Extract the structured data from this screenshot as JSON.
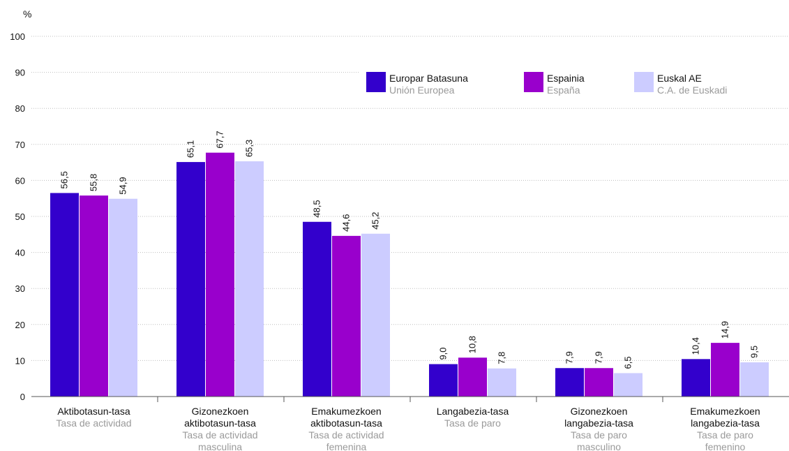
{
  "chart_data": {
    "type": "bar",
    "unit_label": "%",
    "ylim": [
      0,
      100
    ],
    "yticks": [
      0,
      10,
      20,
      30,
      40,
      50,
      60,
      70,
      80,
      90,
      100
    ],
    "grid": true,
    "legend_position": "top-right",
    "categories": [
      {
        "lines": [
          "Aktibotasun-tasa"
        ],
        "sub": [
          "Tasa de actividad"
        ]
      },
      {
        "lines": [
          "Gizonezkoen",
          "aktibotasun-tasa"
        ],
        "sub": [
          "Tasa de actividad",
          "masculina"
        ]
      },
      {
        "lines": [
          "Emakumezkoen",
          "aktibotasun-tasa"
        ],
        "sub": [
          "Tasa de actividad",
          "femenina"
        ]
      },
      {
        "lines": [
          "Langabezia-tasa"
        ],
        "sub": [
          "Tasa de paro"
        ]
      },
      {
        "lines": [
          "Gizonezkoen",
          "langabezia-tasa"
        ],
        "sub": [
          "Tasa de paro",
          "masculino"
        ]
      },
      {
        "lines": [
          "Emakumezkoen",
          "langabezia-tasa"
        ],
        "sub": [
          "Tasa de paro",
          "femenino"
        ]
      }
    ],
    "series": [
      {
        "name": "Europar Batasuna",
        "sub": "Unión Europea",
        "color": "#3300cc",
        "values": [
          56.5,
          65.1,
          48.5,
          9.0,
          7.9,
          10.4
        ],
        "labels": [
          "56,5",
          "65,1",
          "48,5",
          "9,0",
          "7,9",
          "10,4"
        ]
      },
      {
        "name": "Espainia",
        "sub": "España",
        "color": "#9900cc",
        "values": [
          55.8,
          67.7,
          44.6,
          10.8,
          7.9,
          14.9
        ],
        "labels": [
          "55,8",
          "67,7",
          "44,6",
          "10,8",
          "7,9",
          "14,9"
        ]
      },
      {
        "name": "Euskal AE",
        "sub": "C.A. de Euskadi",
        "color": "#ccccff",
        "values": [
          54.9,
          65.3,
          45.2,
          7.8,
          6.5,
          9.5
        ],
        "labels": [
          "54,9",
          "65,3",
          "45,2",
          "7,8",
          "6,5",
          "9,5"
        ]
      }
    ]
  }
}
